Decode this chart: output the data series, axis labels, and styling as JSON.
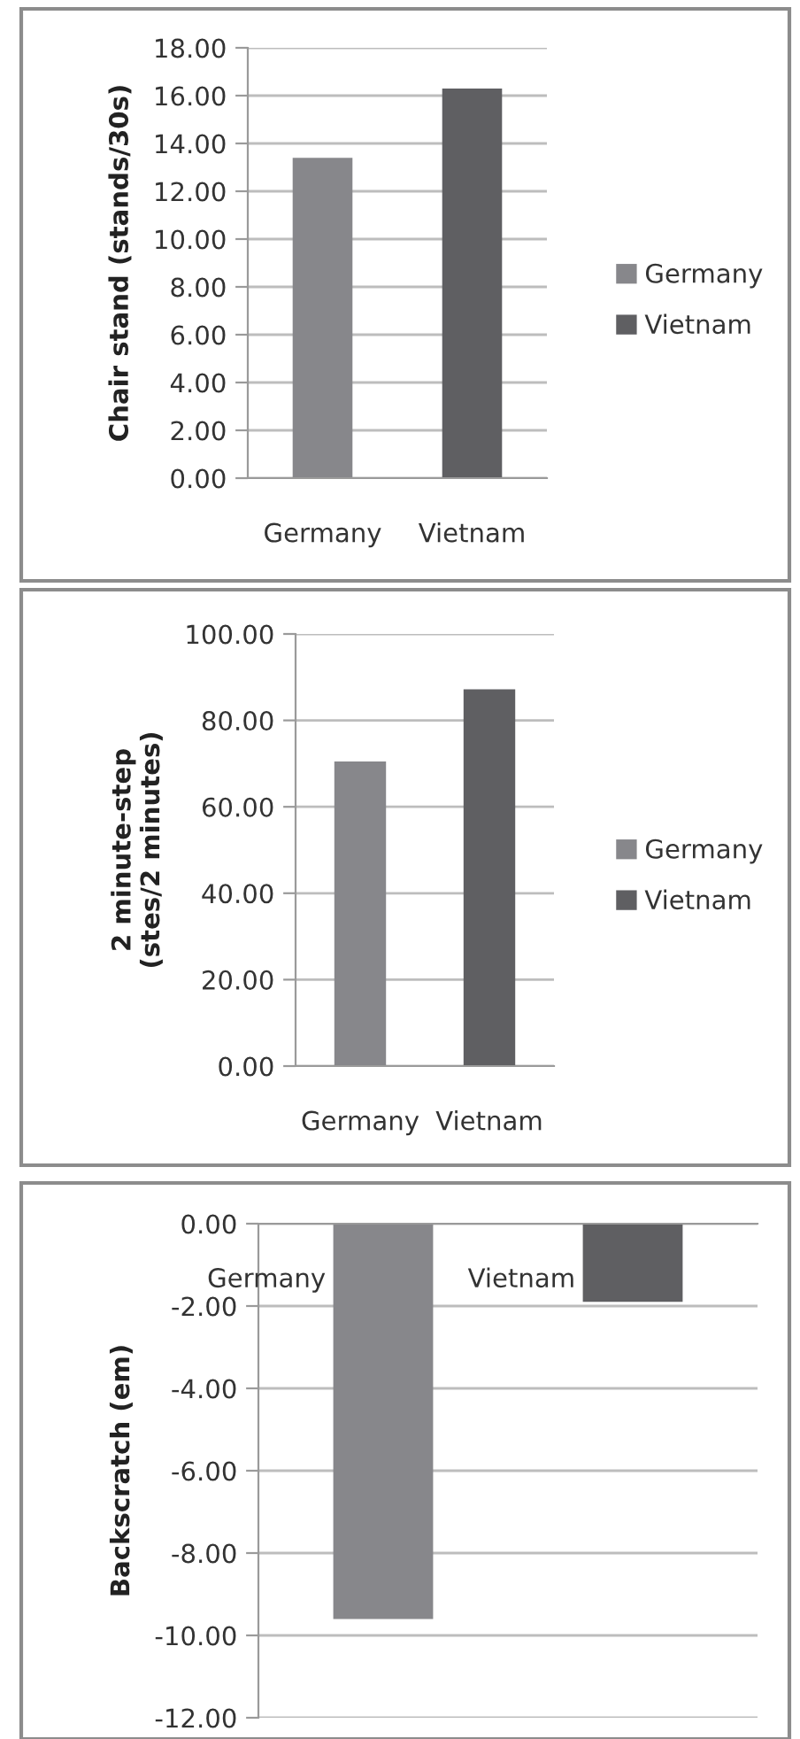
{
  "chart_data": [
    {
      "type": "bar",
      "ylabel": "Chair stand (stands/30s)",
      "categories": [
        "Germany",
        "Vietnam"
      ],
      "series": [
        {
          "name": "Germany",
          "color": "#87878b",
          "values": [
            13.4,
            null
          ]
        },
        {
          "name": "Vietnam",
          "color": "#5f5f62",
          "values": [
            null,
            16.3
          ]
        }
      ],
      "ylim": [
        0,
        18
      ],
      "yticks": [
        {
          "value": 0,
          "label": "0.00"
        },
        {
          "value": 2,
          "label": "2.00"
        },
        {
          "value": 4,
          "label": "4.00"
        },
        {
          "value": 6,
          "label": "6.00"
        },
        {
          "value": 8,
          "label": "8.00"
        },
        {
          "value": 10,
          "label": "10.00"
        },
        {
          "value": 12,
          "label": "12.00"
        },
        {
          "value": 14,
          "label": "14.00"
        },
        {
          "value": 16,
          "label": "16.00"
        },
        {
          "value": 18,
          "label": "18.00"
        }
      ],
      "grid": "y",
      "legend": "right"
    },
    {
      "type": "bar",
      "ylabel": "2 minute-step\n(stes/2 minutes)",
      "categories": [
        "Germany",
        "Vietnam"
      ],
      "series": [
        {
          "name": "Germany",
          "color": "#87878b",
          "values": [
            70.5,
            null
          ]
        },
        {
          "name": "Vietnam",
          "color": "#5f5f62",
          "values": [
            null,
            87.2
          ]
        }
      ],
      "ylim": [
        0,
        100
      ],
      "yticks": [
        {
          "value": 0,
          "label": "0.00"
        },
        {
          "value": 20,
          "label": "20.00"
        },
        {
          "value": 40,
          "label": "40.00"
        },
        {
          "value": 60,
          "label": "60.00"
        },
        {
          "value": 80,
          "label": "80.00"
        },
        {
          "value": 100,
          "label": "100.00"
        }
      ],
      "grid": "y",
      "legend": "right"
    },
    {
      "type": "bar",
      "ylabel": "Backscratch (em)",
      "categories": [
        "Germany",
        "Vietnam"
      ],
      "values": [
        -9.6,
        -1.9
      ],
      "colors": [
        "#87878b",
        "#5f5f62"
      ],
      "ylim": [
        -12,
        0
      ],
      "yticks": [
        {
          "value": -12,
          "label": "-12.00"
        },
        {
          "value": -10,
          "label": "-10.00"
        },
        {
          "value": -8,
          "label": "-8.00"
        },
        {
          "value": -6,
          "label": "-6.00"
        },
        {
          "value": -4,
          "label": "-4.00"
        },
        {
          "value": -2,
          "label": "-2.00"
        },
        {
          "value": 0,
          "label": "0.00"
        }
      ],
      "grid": "y"
    }
  ]
}
